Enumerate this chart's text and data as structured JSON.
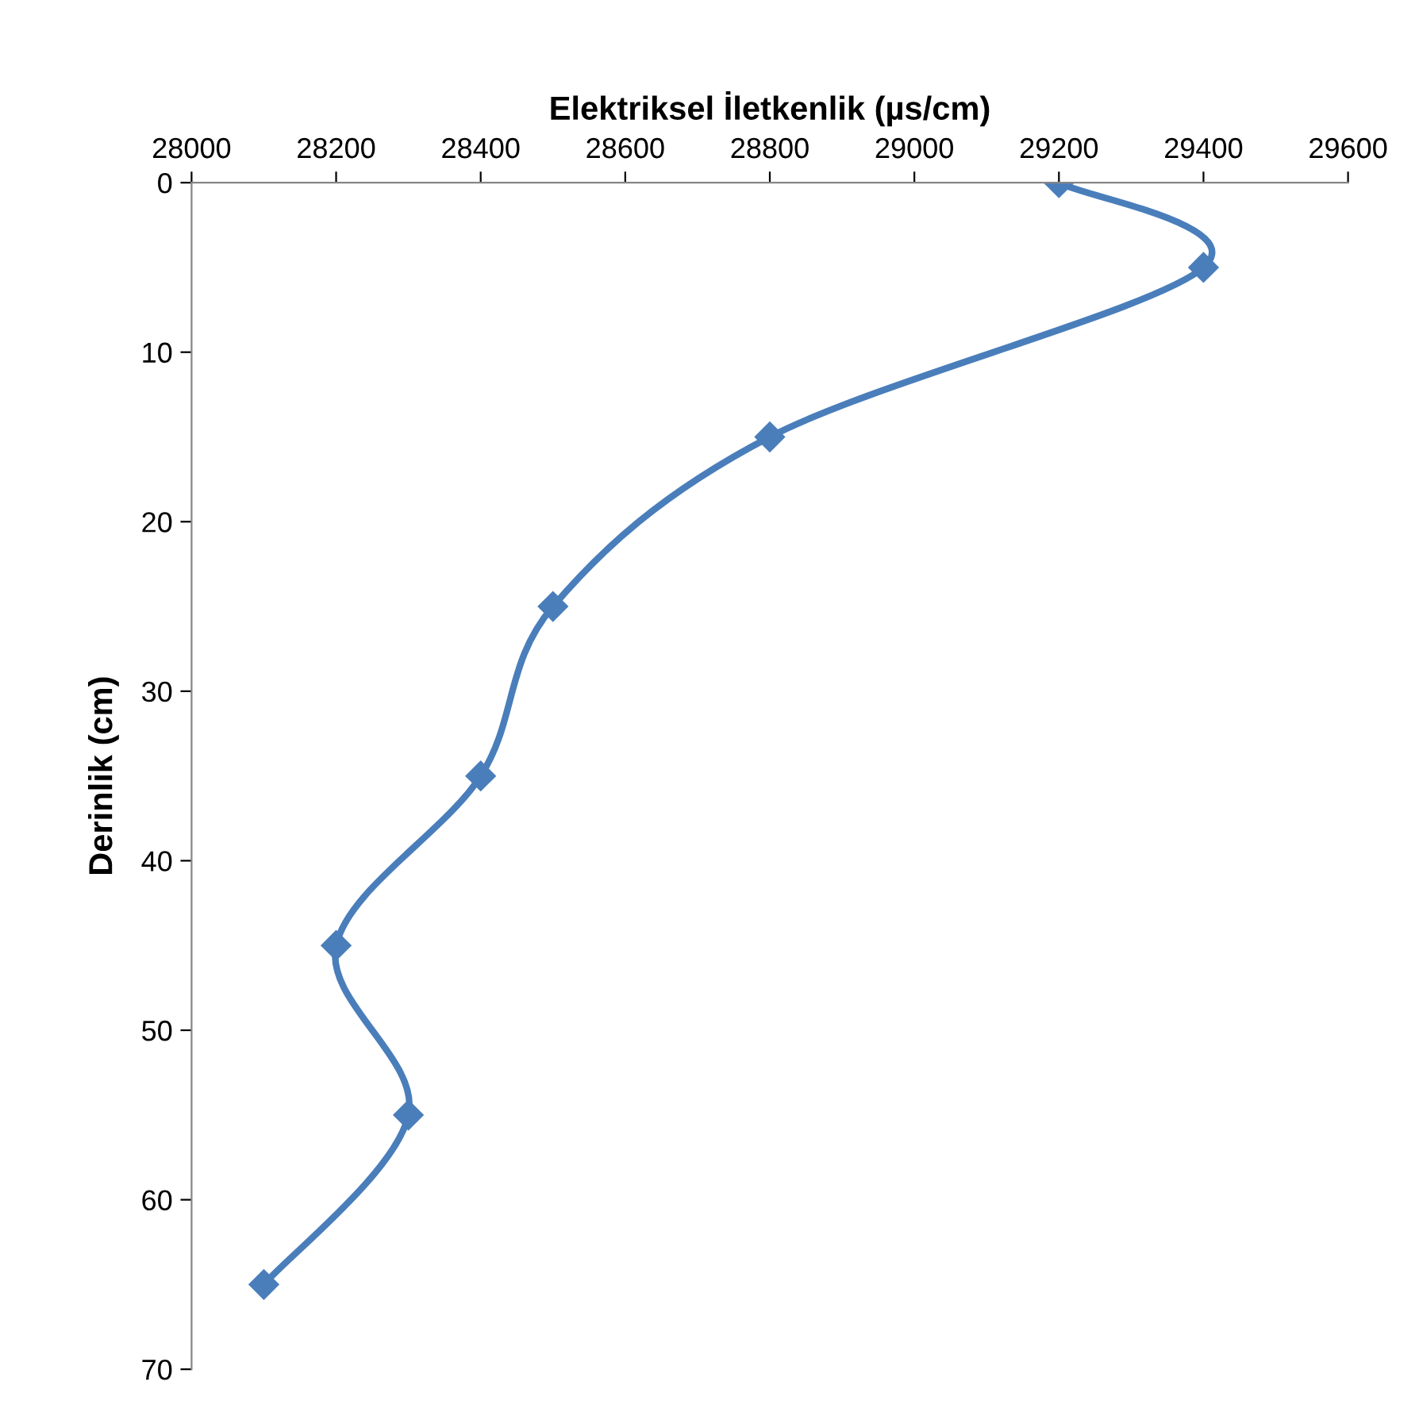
{
  "chart_data": {
    "type": "line",
    "xlabel": "Elektriksel İletkenlik (µs/cm)",
    "ylabel": "Derinlik (cm)",
    "series": [
      {
        "color": "#4a7ebb",
        "x": [
          29200,
          29400,
          28800,
          28500,
          28400,
          28200,
          28300,
          28100
        ],
        "values": [
          0,
          5,
          15,
          25,
          35,
          45,
          55,
          65
        ]
      }
    ],
    "xlim": [
      28000,
      29600
    ],
    "xticks": [
      28000,
      28200,
      28400,
      28600,
      28800,
      29000,
      29200,
      29400,
      29600
    ],
    "ylim": [
      70,
      0
    ],
    "yticks": [
      0,
      10,
      20,
      30,
      40,
      50,
      60,
      70
    ],
    "marker": "diamond",
    "line_style": "solid",
    "grid": false
  }
}
